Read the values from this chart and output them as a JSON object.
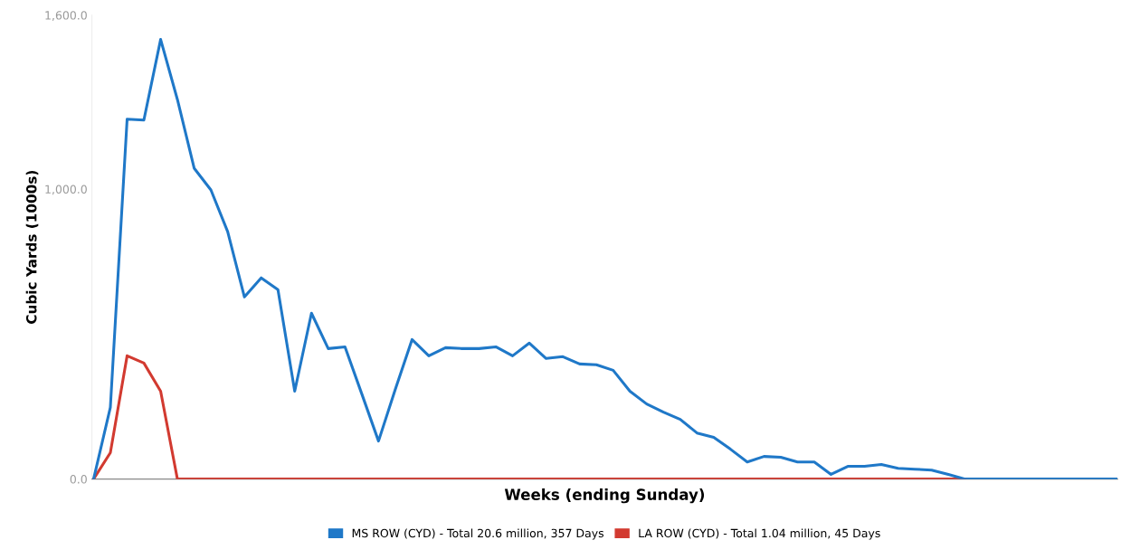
{
  "chart_data": {
    "type": "line",
    "xlabel": "Weeks (ending Sunday)",
    "ylabel": "Cubic Yards (1000s)",
    "categories": [
      null,
      null,
      null,
      null,
      null,
      null,
      null,
      null,
      null,
      null,
      null,
      null,
      null,
      null,
      null,
      null,
      null,
      null,
      null,
      null,
      null,
      null,
      null,
      null,
      null,
      null,
      null,
      null,
      null,
      null,
      null,
      null,
      null,
      null,
      null,
      null,
      null,
      null,
      null,
      null,
      null,
      null,
      null,
      null,
      null,
      null,
      null,
      null,
      null,
      null,
      null,
      null,
      null,
      null,
      null,
      null,
      null,
      null,
      null,
      null,
      null,
      null
    ],
    "ylim": [
      0,
      1600
    ],
    "yticks": [
      {
        "value": 0,
        "label": "0.0"
      },
      {
        "value": 1000,
        "label": "1,000.0"
      },
      {
        "value": 1600,
        "label": "1,600.0"
      }
    ],
    "legend": "bottom",
    "marker": "none",
    "line_style": "solid",
    "series": [
      {
        "name": "LA ROW (CYD) - Total 1.04 million, 45 Days",
        "color": "#d23a30",
        "values": [
          0,
          91,
          425,
          400,
          303,
          0,
          0,
          0,
          0,
          0,
          0,
          0,
          0,
          0,
          0,
          0,
          0,
          0,
          0,
          0,
          0,
          0,
          0,
          0,
          0,
          0,
          0,
          0,
          0,
          0,
          0,
          0,
          0,
          0,
          0,
          0,
          0,
          0,
          0,
          0,
          0,
          0,
          0,
          0,
          0,
          0,
          0,
          0,
          0,
          0,
          0,
          0,
          0,
          null,
          null,
          null,
          null,
          null,
          null,
          null,
          null,
          null
        ]
      },
      {
        "name": "MS ROW (CYD) - Total 20.6 million, 357 Days",
        "color": "#1f78c8",
        "values": [
          0,
          247,
          1241,
          1238,
          1516,
          1309,
          1072,
          997,
          853,
          628,
          694,
          653,
          303,
          572,
          450,
          456,
          294,
          131,
          309,
          481,
          425,
          453,
          450,
          450,
          456,
          425,
          469,
          416,
          422,
          397,
          394,
          375,
          303,
          259,
          231,
          206,
          159,
          144,
          103,
          59,
          78,
          75,
          59,
          59,
          16,
          44,
          44,
          50,
          37,
          34,
          31,
          16,
          0,
          0,
          0,
          0,
          0,
          0,
          0,
          0,
          0,
          0
        ]
      }
    ]
  }
}
